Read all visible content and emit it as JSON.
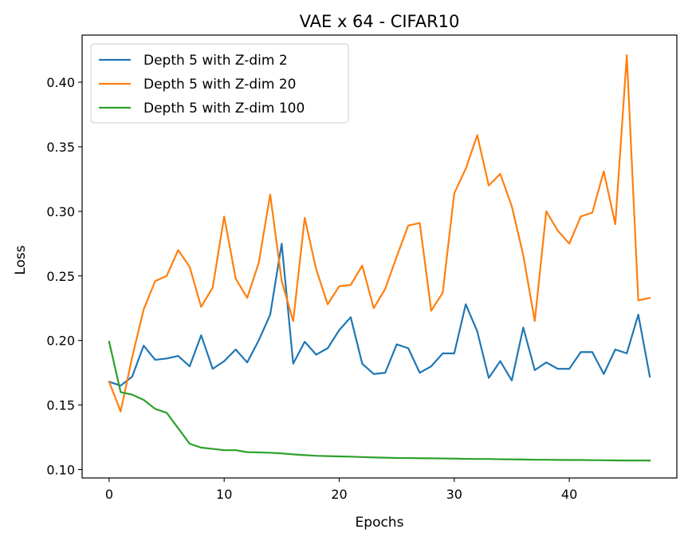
{
  "chart_data": {
    "type": "line",
    "title": "VAE x 64 - CIFAR10",
    "xlabel": "Epochs",
    "ylabel": "Loss",
    "xlim": [
      -2.35,
      49.35
    ],
    "ylim": [
      0.0935,
      0.4365
    ],
    "xticks": [
      0,
      10,
      20,
      30,
      40
    ],
    "yticks": [
      0.1,
      0.15,
      0.2,
      0.25,
      0.3,
      0.35,
      0.4
    ],
    "ytick_labels": [
      "0.10",
      "0.15",
      "0.20",
      "0.25",
      "0.30",
      "0.35",
      "0.40"
    ],
    "grid": false,
    "legend_position": "top-left",
    "x": [
      0,
      1,
      2,
      3,
      4,
      5,
      6,
      7,
      8,
      9,
      10,
      11,
      12,
      13,
      14,
      15,
      16,
      17,
      18,
      19,
      20,
      21,
      22,
      23,
      24,
      25,
      26,
      27,
      28,
      29,
      30,
      31,
      32,
      33,
      34,
      35,
      36,
      37,
      38,
      39,
      40,
      41,
      42,
      43,
      44,
      45,
      46,
      47
    ],
    "series": [
      {
        "name": "Depth 5 with Z-dim 2",
        "color": "#1f77b4",
        "values": [
          0.168,
          0.165,
          0.172,
          0.196,
          0.185,
          0.186,
          0.188,
          0.18,
          0.204,
          0.178,
          0.184,
          0.193,
          0.183,
          0.2,
          0.22,
          0.275,
          0.182,
          0.199,
          0.189,
          0.194,
          0.208,
          0.218,
          0.182,
          0.174,
          0.175,
          0.197,
          0.194,
          0.175,
          0.18,
          0.19,
          0.19,
          0.228,
          0.207,
          0.171,
          0.184,
          0.169,
          0.21,
          0.177,
          0.183,
          0.178,
          0.178,
          0.191,
          0.191,
          0.174,
          0.193,
          0.19,
          0.22,
          0.172
        ]
      },
      {
        "name": "Depth 5 with Z-dim 20",
        "color": "#ff7f0e",
        "values": [
          0.168,
          0.145,
          0.187,
          0.224,
          0.246,
          0.25,
          0.27,
          0.257,
          0.226,
          0.241,
          0.296,
          0.248,
          0.233,
          0.26,
          0.313,
          0.246,
          0.215,
          0.295,
          0.255,
          0.228,
          0.242,
          0.243,
          0.258,
          0.225,
          0.24,
          0.265,
          0.289,
          0.291,
          0.223,
          0.237,
          0.314,
          0.333,
          0.359,
          0.32,
          0.329,
          0.304,
          0.266,
          0.215,
          0.3,
          0.285,
          0.275,
          0.296,
          0.299,
          0.331,
          0.29,
          0.421,
          0.231,
          0.233
        ]
      },
      {
        "name": "Depth 5 with Z-dim 100",
        "color": "#2ca02c",
        "values": [
          0.199,
          0.16,
          0.158,
          0.154,
          0.147,
          0.144,
          0.132,
          0.12,
          0.117,
          0.116,
          0.115,
          0.115,
          0.1135,
          0.1133,
          0.113,
          0.1125,
          0.1118,
          0.1112,
          0.1107,
          0.1104,
          0.1102,
          0.11,
          0.1097,
          0.1094,
          0.1092,
          0.109,
          0.1089,
          0.1088,
          0.1087,
          0.1086,
          0.1085,
          0.1083,
          0.1082,
          0.1082,
          0.108,
          0.1079,
          0.1078,
          0.1076,
          0.1076,
          0.1075,
          0.1074,
          0.1074,
          0.1073,
          0.1072,
          0.1071,
          0.107,
          0.107,
          0.107
        ]
      }
    ]
  }
}
